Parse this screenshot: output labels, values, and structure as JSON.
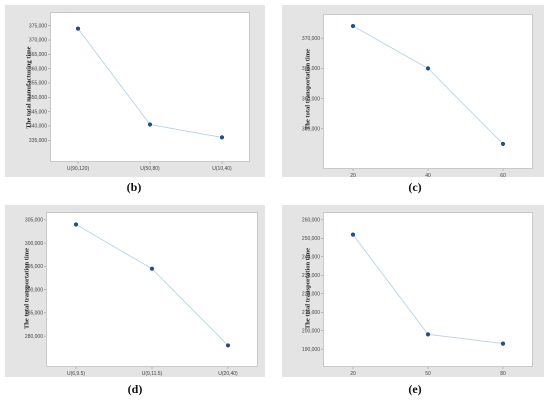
{
  "chart_data": [
    {
      "type": "line",
      "caption": "(b)",
      "ylabel": "The total manufacturing time",
      "categories": [
        "U(90,120)",
        "U(50,80)",
        "U(10,40)"
      ],
      "values": [
        374000,
        340500,
        336000
      ],
      "ylim": [
        333000,
        377000
      ],
      "yticks": [
        335000,
        340000,
        345000,
        350000,
        355000,
        360000,
        365000,
        370000,
        375000
      ],
      "ytick_labels": [
        "335,000",
        "340,000",
        "345,000",
        "350,000",
        "355,000",
        "360,000",
        "365,000",
        "370,000",
        "375,000"
      ],
      "grid": false,
      "colors": {
        "line": "#b6d3e6",
        "marker": "#1f4e8c"
      }
    },
    {
      "type": "line",
      "caption": "(c)",
      "ylabel": "The total transportation time",
      "categories": [
        "20",
        "40",
        "60"
      ],
      "values": [
        372000,
        365000,
        352500
      ],
      "ylim": [
        351000,
        373000
      ],
      "yticks": [
        355000,
        360000,
        365000,
        370000
      ],
      "ytick_labels": [
        "355,000",
        "360,000",
        "365,000",
        "370,000"
      ],
      "grid": false,
      "colors": {
        "line": "#b6d3e6",
        "marker": "#1f4e8c"
      }
    },
    {
      "type": "line",
      "caption": "(d)",
      "ylabel": "The total transportation time",
      "categories": [
        "U(6,9.5)",
        "U(9,11.5)",
        "U(20,40)"
      ],
      "values": [
        304000,
        294500,
        278000
      ],
      "ylim": [
        276800,
        305400
      ],
      "yticks": [
        280000,
        285000,
        290000,
        295000,
        300000,
        305000
      ],
      "ytick_labels": [
        "280,000",
        "285,000",
        "290,000",
        "295,000",
        "300,000",
        "305,000"
      ],
      "grid": false,
      "colors": {
        "line": "#b6d3e6",
        "marker": "#1f4e8c"
      }
    },
    {
      "type": "line",
      "caption": "(e)",
      "ylabel": "The total transportation time",
      "categories": [
        "20",
        "50",
        "80"
      ],
      "values": [
        252000,
        198000,
        193000
      ],
      "ylim": [
        189000,
        261000
      ],
      "yticks": [
        190000,
        200000,
        210000,
        220000,
        230000,
        240000,
        250000,
        260000
      ],
      "ytick_labels": [
        "190,000",
        "200,000",
        "210,000",
        "220,000",
        "230,000",
        "240,000",
        "250,000",
        "260,000"
      ],
      "grid": false,
      "colors": {
        "line": "#b6d3e6",
        "marker": "#1f4e8c"
      }
    }
  ]
}
